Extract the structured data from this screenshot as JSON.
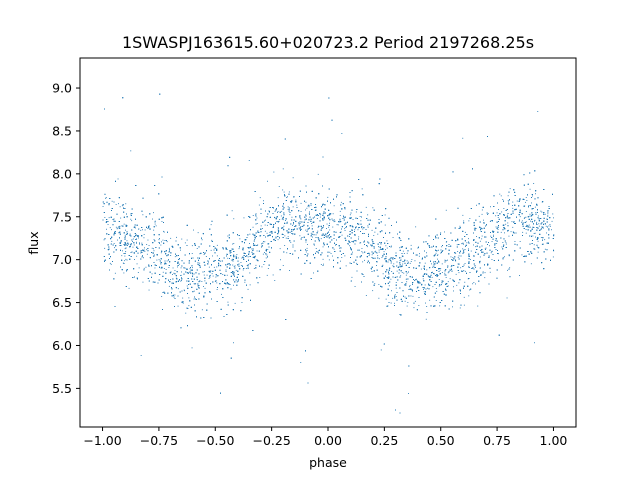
{
  "chart_data": {
    "type": "scatter",
    "title": "1SWASPJ163615.60+020723.2 Period 2197268.25s",
    "xlabel": "phase",
    "ylabel": "flux",
    "xlim": [
      -1.1,
      1.1
    ],
    "ylim": [
      5.05,
      9.35
    ],
    "grid": false,
    "marker_color": "#1f77b4",
    "x_ticks": [
      {
        "value": -1.0,
        "label": "−1.00"
      },
      {
        "value": -0.75,
        "label": "−0.75"
      },
      {
        "value": -0.5,
        "label": "−0.50"
      },
      {
        "value": -0.25,
        "label": "−0.25"
      },
      {
        "value": 0.0,
        "label": "0.00"
      },
      {
        "value": 0.25,
        "label": "0.25"
      },
      {
        "value": 0.5,
        "label": "0.50"
      },
      {
        "value": 0.75,
        "label": "0.75"
      },
      {
        "value": 1.0,
        "label": "1.00"
      }
    ],
    "y_ticks": [
      {
        "value": 5.5,
        "label": "5.5"
      },
      {
        "value": 6.0,
        "label": "6.0"
      },
      {
        "value": 6.5,
        "label": "6.5"
      },
      {
        "value": 7.0,
        "label": "7.0"
      },
      {
        "value": 7.5,
        "label": "7.5"
      },
      {
        "value": 8.0,
        "label": "8.0"
      },
      {
        "value": 8.5,
        "label": "8.5"
      },
      {
        "value": 9.0,
        "label": "9.0"
      }
    ],
    "series": [
      {
        "x": [
          -1.0,
          -0.95,
          -0.9,
          -0.85,
          -0.8,
          -0.75,
          -0.7,
          -0.65,
          -0.6,
          -0.55,
          -0.5,
          -0.45,
          -0.4,
          -0.35,
          -0.3,
          -0.25,
          -0.2,
          -0.15,
          -0.1,
          -0.05,
          0.0,
          0.05,
          0.1,
          0.15,
          0.2,
          0.25,
          0.3,
          0.35,
          0.4,
          0.45,
          0.5,
          0.55,
          0.6,
          0.65,
          0.7,
          0.75,
          0.8,
          0.85,
          0.9,
          0.95,
          1.0
        ],
        "y": [
          7.4,
          7.3,
          7.25,
          7.2,
          7.15,
          7.05,
          6.95,
          6.85,
          6.8,
          6.85,
          6.9,
          6.95,
          7.0,
          7.1,
          7.25,
          7.35,
          7.45,
          7.45,
          7.4,
          7.4,
          7.4,
          7.35,
          7.3,
          7.2,
          7.1,
          7.0,
          6.9,
          6.85,
          6.8,
          6.85,
          6.9,
          6.95,
          7.0,
          7.1,
          7.2,
          7.3,
          7.4,
          7.45,
          7.45,
          7.4,
          7.4
        ]
      }
    ]
  }
}
